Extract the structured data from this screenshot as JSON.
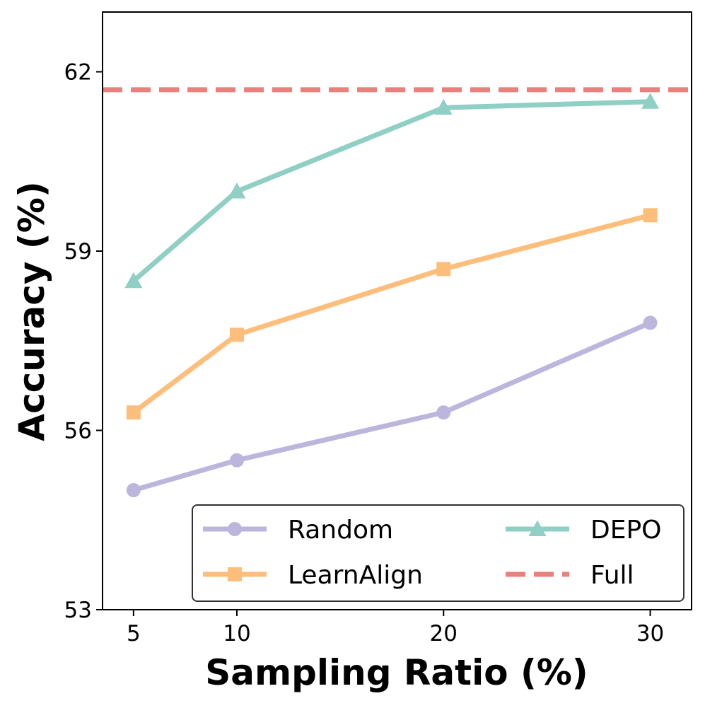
{
  "chart_data": {
    "type": "line",
    "title": "",
    "xlabel": "Sampling Ratio (%)",
    "ylabel": "Accuracy (%)",
    "x": [
      5,
      10,
      20,
      30
    ],
    "x_ticks": [
      "5",
      "10",
      "20",
      "30"
    ],
    "xlim": [
      3.5,
      32
    ],
    "y_ticks": [
      "53",
      "56",
      "59",
      "62"
    ],
    "ylim": [
      53,
      63
    ],
    "grid": false,
    "legend_position": "lower-right",
    "series": [
      {
        "name": "Random",
        "values": [
          55.0,
          55.5,
          56.3,
          57.8
        ],
        "color": "#bcb6dd",
        "marker": "circle",
        "linestyle": "solid"
      },
      {
        "name": "LearnAlign",
        "values": [
          56.3,
          57.6,
          58.7,
          59.6
        ],
        "color": "#fdbe7c",
        "marker": "square",
        "linestyle": "solid"
      },
      {
        "name": "DEPO",
        "values": [
          58.5,
          60.0,
          61.4,
          61.5
        ],
        "color": "#8fcfc4",
        "marker": "triangle",
        "linestyle": "solid"
      }
    ],
    "reference_lines": [
      {
        "name": "Full",
        "value": 61.7,
        "color": "#e8807c",
        "linestyle": "dashed"
      }
    ],
    "legend_order": [
      "Random",
      "DEPO",
      "LearnAlign",
      "Full"
    ]
  }
}
